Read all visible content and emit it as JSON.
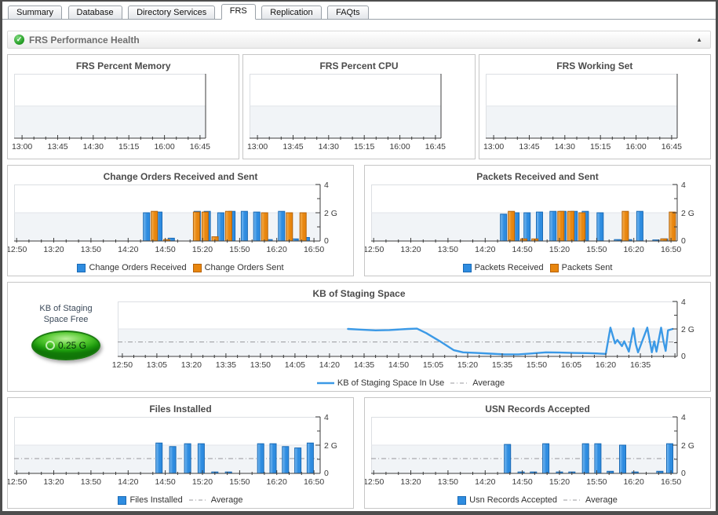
{
  "tabs": {
    "items": [
      {
        "label": "Summary",
        "active": false
      },
      {
        "label": "Database",
        "active": false
      },
      {
        "label": "Directory Services",
        "active": false
      },
      {
        "label": "FRS",
        "active": true
      },
      {
        "label": "Replication",
        "active": false
      },
      {
        "label": "FAQts",
        "active": false
      }
    ]
  },
  "section": {
    "title": "FRS Performance Health"
  },
  "gauge": {
    "label_lines": [
      "KB of Staging",
      "Space Free"
    ],
    "value": "0.25 G"
  },
  "colors": {
    "bar_blue": "#2e8ce0",
    "bar_orange": "#e8860f",
    "line_blue": "#3b99e6",
    "average_gray": "#98989d",
    "status_green": "#2ba32b"
  },
  "chart_data": [
    {
      "type": "empty",
      "title": "FRS Percent Memory",
      "t_range": [
        0,
        242
      ],
      "x_ticks": {
        "start": 10,
        "major_step": 45,
        "minor_step": 15,
        "labels": [
          "13:00",
          "13:45",
          "14:30",
          "15:15",
          "16:00",
          "16:45"
        ]
      },
      "y": {
        "max": 4,
        "band_top": 2,
        "labels": []
      },
      "average": null,
      "series": []
    },
    {
      "type": "empty",
      "title": "FRS Percent CPU",
      "t_range": [
        0,
        242
      ],
      "x_ticks": {
        "start": 10,
        "major_step": 45,
        "minor_step": 15,
        "labels": [
          "13:00",
          "13:45",
          "14:30",
          "15:15",
          "16:00",
          "16:45"
        ]
      },
      "y": {
        "max": 4,
        "band_top": 2,
        "labels": []
      },
      "average": null,
      "series": []
    },
    {
      "type": "empty",
      "title": "FRS Working Set",
      "t_range": [
        0,
        242
      ],
      "x_ticks": {
        "start": 10,
        "major_step": 45,
        "minor_step": 15,
        "labels": [
          "13:00",
          "13:45",
          "14:30",
          "15:15",
          "16:00",
          "16:45"
        ]
      },
      "y": {
        "max": 4,
        "band_top": 2,
        "labels": []
      },
      "average": null,
      "series": []
    },
    {
      "type": "bar",
      "title": "Change Orders Received and Sent",
      "t_range": [
        0,
        247
      ],
      "x_ticks": {
        "start": 2,
        "major_step": 30,
        "minor_step": 10,
        "labels": [
          "12:50",
          "13:20",
          "13:50",
          "14:20",
          "14:50",
          "15:20",
          "15:50",
          "16:20",
          "16:50"
        ]
      },
      "y": {
        "max": 4,
        "band_top": 2,
        "labels": [
          {
            "v": 0,
            "text": "0"
          },
          {
            "v": 2,
            "text": "2 G"
          },
          {
            "v": 4,
            "text": "4"
          }
        ]
      },
      "average": null,
      "series": [
        {
          "name": "Change Orders Received",
          "type": "bar",
          "color": "#2e8ce0",
          "color_light": "#7cbcf2",
          "color_dark": "#1a6ab5",
          "points": [
            [
              110,
              2.0
            ],
            [
              120,
              2.05
            ],
            [
              130,
              0.2
            ],
            [
              151,
              2.1
            ],
            [
              159,
              2.1
            ],
            [
              170,
              2.0
            ],
            [
              179,
              2.1
            ],
            [
              189,
              2.1
            ],
            [
              199,
              2.05
            ],
            [
              209,
              0.1
            ],
            [
              219,
              2.1
            ],
            [
              230,
              0.15
            ],
            [
              239,
              0.25
            ]
          ]
        },
        {
          "name": "Change Orders Sent",
          "type": "bar",
          "color": "#e8860f",
          "color_light": "#f6b255",
          "color_dark": "#b56207",
          "points": [
            [
              110,
              2.1
            ],
            [
              120,
              0.1
            ],
            [
              144,
              2.05
            ],
            [
              151,
              2.05
            ],
            [
              159,
              0.3
            ],
            [
              170,
              2.1
            ],
            [
              199,
              2.0
            ],
            [
              219,
              2.0
            ],
            [
              230,
              2.0
            ]
          ]
        }
      ]
    },
    {
      "type": "bar",
      "title": "Packets Received and Sent",
      "t_range": [
        0,
        247
      ],
      "x_ticks": {
        "start": 2,
        "major_step": 30,
        "minor_step": 10,
        "labels": [
          "12:50",
          "13:20",
          "13:50",
          "14:20",
          "14:50",
          "15:20",
          "15:50",
          "16:20",
          "16:50"
        ]
      },
      "y": {
        "max": 4,
        "band_top": 2,
        "labels": [
          {
            "v": 0,
            "text": "0"
          },
          {
            "v": 2,
            "text": "2 G"
          },
          {
            "v": 4,
            "text": "4"
          }
        ]
      },
      "average": null,
      "series": [
        {
          "name": "Packets Received",
          "type": "bar",
          "color": "#2e8ce0",
          "color_light": "#7cbcf2",
          "color_dark": "#1a6ab5",
          "points": [
            [
              110,
              1.9
            ],
            [
              120,
              2.0
            ],
            [
              129,
              2.0
            ],
            [
              139,
              2.05
            ],
            [
              150,
              2.1
            ],
            [
              158,
              2.1
            ],
            [
              167,
              2.1
            ],
            [
              176,
              2.1
            ],
            [
              188,
              2.0
            ],
            [
              202,
              0.1
            ],
            [
              211,
              0.1
            ],
            [
              220,
              2.1
            ],
            [
              233,
              0.08
            ],
            [
              240,
              0.15
            ]
          ]
        },
        {
          "name": "Packets Sent",
          "type": "bar",
          "color": "#e8860f",
          "color_light": "#f6b255",
          "color_dark": "#b56207",
          "points": [
            [
              110,
              2.1
            ],
            [
              120,
              0.15
            ],
            [
              129,
              0.15
            ],
            [
              150,
              2.1
            ],
            [
              158,
              2.1
            ],
            [
              167,
              2.0
            ],
            [
              202,
              2.1
            ],
            [
              233,
              0.15
            ],
            [
              240,
              2.05
            ]
          ]
        }
      ]
    },
    {
      "type": "line",
      "title": "KB of Staging Space",
      "t_range": [
        0,
        243
      ],
      "x_ticks": {
        "start": 2,
        "major_step": 15,
        "minor_step": 5,
        "labels": [
          "12:50",
          "13:05",
          "13:20",
          "13:35",
          "13:50",
          "14:05",
          "14:20",
          "14:35",
          "14:50",
          "15:05",
          "15:20",
          "15:35",
          "15:50",
          "16:05",
          "16:20",
          "16:35"
        ]
      },
      "y": {
        "max": 4,
        "band_top": 2,
        "labels": [
          {
            "v": 0,
            "text": "0"
          },
          {
            "v": 2,
            "text": "2 G"
          },
          {
            "v": 4,
            "text": "4"
          }
        ]
      },
      "average": {
        "value": 1.05,
        "label": "Average"
      },
      "series": [
        {
          "name": "KB of Staging Space In Use",
          "type": "line",
          "color": "#3b99e6",
          "points": [
            [
              100,
              2.0
            ],
            [
              106,
              1.95
            ],
            [
              112,
              1.9
            ],
            [
              118,
              1.92
            ],
            [
              126,
              2.0
            ],
            [
              130,
              2.02
            ],
            [
              134,
              1.7
            ],
            [
              140,
              1.1
            ],
            [
              146,
              0.45
            ],
            [
              150,
              0.3
            ],
            [
              156,
              0.25
            ],
            [
              162,
              0.2
            ],
            [
              168,
              0.15
            ],
            [
              174,
              0.15
            ],
            [
              180,
              0.22
            ],
            [
              186,
              0.3
            ],
            [
              192,
              0.28
            ],
            [
              198,
              0.25
            ],
            [
              204,
              0.24
            ],
            [
              208,
              0.22
            ],
            [
              212,
              0.18
            ],
            [
              214,
              2.1
            ],
            [
              216,
              0.95
            ],
            [
              217,
              1.2
            ],
            [
              219,
              0.75
            ],
            [
              220,
              1.1
            ],
            [
              222,
              0.35
            ],
            [
              224,
              2.05
            ],
            [
              225,
              0.9
            ],
            [
              226,
              0.3
            ],
            [
              228,
              1.2
            ],
            [
              230,
              2.1
            ],
            [
              232,
              0.3
            ],
            [
              233,
              1.1
            ],
            [
              234,
              0.35
            ],
            [
              236,
              2.1
            ],
            [
              237,
              1.15
            ],
            [
              238,
              0.4
            ],
            [
              239,
              1.9
            ],
            [
              241,
              2.0
            ]
          ]
        }
      ]
    },
    {
      "type": "bar",
      "title": "Files Installed",
      "t_range": [
        0,
        247
      ],
      "x_ticks": {
        "start": 2,
        "major_step": 30,
        "minor_step": 10,
        "labels": [
          "12:50",
          "13:20",
          "13:50",
          "14:20",
          "14:50",
          "15:20",
          "15:50",
          "16:20",
          "16:50"
        ]
      },
      "y": {
        "max": 4,
        "band_top": 2,
        "labels": [
          {
            "v": 0,
            "text": "0"
          },
          {
            "v": 2,
            "text": "2 G"
          },
          {
            "v": 4,
            "text": "4"
          }
        ]
      },
      "average": {
        "value": 1.05,
        "label": "Average"
      },
      "series": [
        {
          "name": "Files Installed",
          "type": "bar",
          "color": "#2e8ce0",
          "color_light": "#7cbcf2",
          "color_dark": "#1a6ab5",
          "points": [
            [
              117,
              2.15
            ],
            [
              128,
              1.9
            ],
            [
              140,
              2.1
            ],
            [
              151,
              2.1
            ],
            [
              162,
              0.1
            ],
            [
              173,
              0.1
            ],
            [
              199,
              2.1
            ],
            [
              209,
              2.1
            ],
            [
              219,
              1.9
            ],
            [
              229,
              1.8
            ],
            [
              239,
              2.15
            ]
          ]
        }
      ]
    },
    {
      "type": "bar",
      "title": "USN Records Accepted",
      "t_range": [
        0,
        247
      ],
      "x_ticks": {
        "start": 2,
        "major_step": 30,
        "minor_step": 10,
        "labels": [
          "12:50",
          "13:20",
          "13:50",
          "14:20",
          "14:50",
          "15:20",
          "15:50",
          "16:20",
          "16:50"
        ]
      },
      "y": {
        "max": 4,
        "band_top": 2,
        "labels": [
          {
            "v": 0,
            "text": "0"
          },
          {
            "v": 2,
            "text": "2 G"
          },
          {
            "v": 4,
            "text": "4"
          }
        ]
      },
      "average": {
        "value": 1.05,
        "label": "Average"
      },
      "series": [
        {
          "name": "Usn Records Accepted",
          "type": "bar",
          "color": "#2e8ce0",
          "color_light": "#7cbcf2",
          "color_dark": "#1a6ab5",
          "points": [
            [
              110,
              2.05
            ],
            [
              121,
              0.1
            ],
            [
              131,
              0.1
            ],
            [
              141,
              2.1
            ],
            [
              152,
              0.1
            ],
            [
              162,
              0.1
            ],
            [
              173,
              2.1
            ],
            [
              183,
              2.1
            ],
            [
              193,
              0.15
            ],
            [
              203,
              2.0
            ],
            [
              213,
              0.1
            ],
            [
              233,
              0.15
            ],
            [
              241,
              2.1
            ]
          ]
        }
      ]
    }
  ]
}
